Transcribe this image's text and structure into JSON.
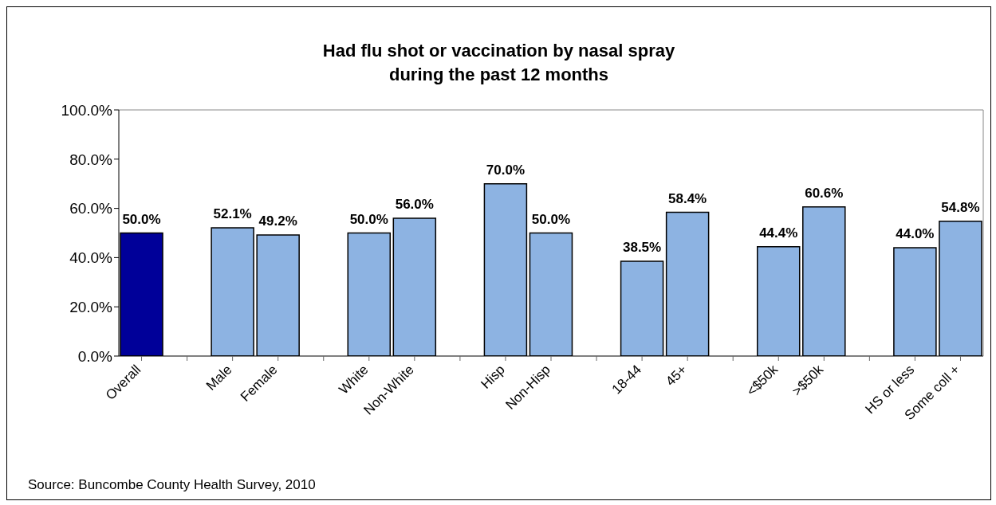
{
  "chart_data": {
    "type": "bar",
    "title": "Had flu shot or vaccination by nasal spray\nduring the past 12 months",
    "categories": [
      "Overall",
      null,
      "Male",
      "Female",
      null,
      "White",
      "Non-White",
      null,
      "Hisp",
      "Non-Hisp",
      null,
      "18-44",
      "45+",
      null,
      "<$50k",
      ">$50k",
      null,
      "HS or less",
      "Some coll +"
    ],
    "values": [
      50.0,
      null,
      52.1,
      49.2,
      null,
      50.0,
      56.0,
      null,
      70.0,
      50.0,
      null,
      38.5,
      58.4,
      null,
      44.4,
      60.6,
      null,
      44.0,
      54.8
    ],
    "value_labels": [
      "50.0%",
      null,
      "52.1%",
      "49.2%",
      null,
      "50.0%",
      "56.0%",
      null,
      "70.0%",
      "50.0%",
      null,
      "38.5%",
      "58.4%",
      null,
      "44.4%",
      "60.6%",
      null,
      "44.0%",
      "54.8%"
    ],
    "colors": [
      "#000099",
      null,
      "#8db3e2",
      "#8db3e2",
      null,
      "#8db3e2",
      "#8db3e2",
      null,
      "#8db3e2",
      "#8db3e2",
      null,
      "#8db3e2",
      "#8db3e2",
      null,
      "#8db3e2",
      "#8db3e2",
      null,
      "#8db3e2",
      "#8db3e2"
    ],
    "ylim": [
      0,
      100
    ],
    "yticks": [
      {
        "value": 0,
        "label": "0.0%"
      },
      {
        "value": 20,
        "label": "20.0%"
      },
      {
        "value": 40,
        "label": "40.0%"
      },
      {
        "value": 60,
        "label": "60.0%"
      },
      {
        "value": 80,
        "label": "80.0%"
      },
      {
        "value": 100,
        "label": "100.0%"
      }
    ],
    "annotations": [
      "Source: Buncombe County Health Survey, 2010"
    ]
  }
}
